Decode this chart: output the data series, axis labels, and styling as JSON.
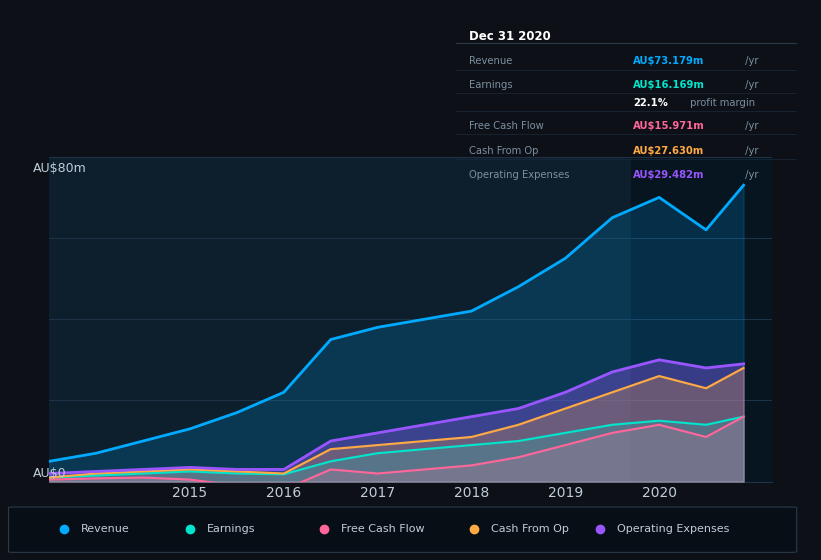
{
  "bg_color": "#0d1117",
  "plot_bg_color": "#0d1f2d",
  "grid_color": "#1e3448",
  "text_color": "#c0ccd8",
  "title_color": "#ffffff",
  "ylabel_text": "AU$80m",
  "ylabel0_text": "AU$0",
  "x_years": [
    2013.5,
    2014.0,
    2014.5,
    2015.0,
    2015.5,
    2016.0,
    2016.5,
    2017.0,
    2017.5,
    2018.0,
    2018.5,
    2019.0,
    2019.5,
    2020.0,
    2020.5,
    2020.9
  ],
  "revenue": [
    5,
    7,
    10,
    13,
    17,
    22,
    35,
    38,
    40,
    42,
    48,
    55,
    65,
    70,
    62,
    73
  ],
  "earnings": [
    1,
    1.5,
    2,
    2.5,
    2,
    1.8,
    5,
    7,
    8,
    9,
    10,
    12,
    14,
    15,
    14,
    16
  ],
  "free_cash_flow": [
    0.5,
    0.8,
    1,
    0.5,
    -1,
    -2,
    3,
    2,
    3,
    4,
    6,
    9,
    12,
    14,
    11,
    16
  ],
  "cash_from_op": [
    1,
    2,
    2.5,
    3,
    2.5,
    2,
    8,
    9,
    10,
    11,
    14,
    18,
    22,
    26,
    23,
    28
  ],
  "op_expenses": [
    2,
    2.5,
    3,
    3.5,
    3,
    3,
    10,
    12,
    14,
    16,
    18,
    22,
    27,
    30,
    28,
    29
  ],
  "revenue_color": "#00aaff",
  "earnings_color": "#00e5cc",
  "fcf_color": "#ff6699",
  "cashop_color": "#ffaa44",
  "opex_color": "#9955ff",
  "x_tick_labels": [
    "2015",
    "2016",
    "2017",
    "2018",
    "2019",
    "2020"
  ],
  "x_tick_positions": [
    2015,
    2016,
    2017,
    2018,
    2019,
    2020
  ],
  "ylim": [
    0,
    80
  ],
  "xlim": [
    2013.5,
    2021.2
  ],
  "legend_items": [
    "Revenue",
    "Earnings",
    "Free Cash Flow",
    "Cash From Op",
    "Operating Expenses"
  ],
  "legend_colors": [
    "#00aaff",
    "#00e5cc",
    "#ff6699",
    "#ffaa44",
    "#9955ff"
  ],
  "tooltip_bg": "#050a0f",
  "tooltip_title": "Dec 31 2020",
  "tooltip_rows": [
    {
      "label": "Revenue",
      "value_colored": "AU$73.179m",
      "value_plain": " /yr",
      "color": "#00aaff"
    },
    {
      "label": "Earnings",
      "value_colored": "AU$16.169m",
      "value_plain": " /yr",
      "color": "#00e5cc"
    },
    {
      "label": "",
      "value_colored": "22.1%",
      "value_plain": " profit margin",
      "color": "#ffffff"
    },
    {
      "label": "Free Cash Flow",
      "value_colored": "AU$15.971m",
      "value_plain": " /yr",
      "color": "#ff6699"
    },
    {
      "label": "Cash From Op",
      "value_colored": "AU$27.630m",
      "value_plain": " /yr",
      "color": "#ffaa44"
    },
    {
      "label": "Operating Expenses",
      "value_colored": "AU$29.482m",
      "value_plain": " /yr",
      "color": "#9955ff"
    }
  ],
  "highlight_x_start": 2019.7,
  "highlight_bg": "#071520"
}
